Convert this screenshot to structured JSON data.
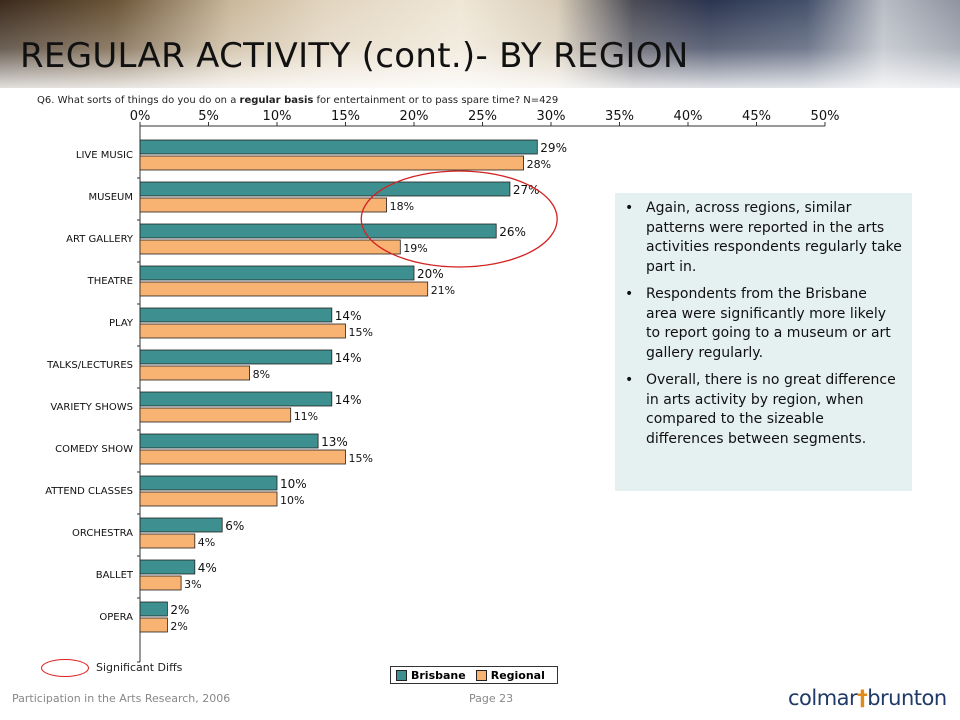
{
  "title": "REGULAR ACTIVITY (cont.)- BY REGION",
  "question": {
    "prefix": "Q6. What sorts of things do you do on a ",
    "bold": "regular basis",
    "suffix": " for entertainment or to pass spare time? N=429"
  },
  "colors": {
    "brisbane": "#3e9090",
    "regional": "#f8b271",
    "highlight": "#d22222",
    "callout_bg": "#e5f0f0"
  },
  "chart_data": {
    "type": "bar",
    "orientation": "horizontal",
    "categories": [
      "LIVE MUSIC",
      "MUSEUM",
      "ART GALLERY",
      "THEATRE",
      "PLAY",
      "TALKS/LECTURES",
      "VARIETY SHOWS",
      "COMEDY SHOW",
      "ATTEND CLASSES",
      "ORCHESTRA",
      "BALLET",
      "OPERA"
    ],
    "series": [
      {
        "name": "Brisbane",
        "values": [
          29,
          27,
          26,
          20,
          14,
          14,
          14,
          13,
          10,
          6,
          4,
          2
        ]
      },
      {
        "name": "Regional",
        "values": [
          28,
          18,
          19,
          21,
          15,
          8,
          11,
          15,
          10,
          4,
          3,
          2
        ]
      }
    ],
    "value_labels": {
      "Brisbane": [
        "29%",
        "27%",
        "26%",
        "20%",
        "14%",
        "14%",
        "14%",
        "13%",
        "10%",
        "6%",
        "4%",
        "2%"
      ],
      "Regional": [
        "28%",
        "18%",
        "19%",
        "21%",
        "15%",
        "8%",
        "11%",
        "15%",
        "10%",
        "4%",
        "3%",
        "2%"
      ]
    },
    "x_ticks": [
      "0%",
      "5%",
      "10%",
      "15%",
      "20%",
      "25%",
      "30%",
      "35%",
      "40%",
      "45%",
      "50%"
    ],
    "xlim": [
      0,
      50
    ],
    "axis_position": "top",
    "legend_position": "bottom",
    "significant_diffs": [
      "MUSEUM",
      "ART GALLERY"
    ]
  },
  "callout": {
    "bullets": [
      "Again, across regions, similar patterns were reported in the arts activities respondents regularly take part in.",
      "Respondents from the Brisbane area were significantly more likely to report going to a museum or art gallery regularly.",
      "Overall, there is no great difference in arts activity by region, when compared to the sizeable differences between segments."
    ]
  },
  "key": {
    "significant_label": "Significant Diffs"
  },
  "legend": {
    "brisbane": "Brisbane",
    "regional": "Regional"
  },
  "footer": {
    "left": "Participation in the Arts Research, 2006",
    "page": "Page 23"
  },
  "logo": {
    "part1": "colmar",
    "part2": "brunton"
  }
}
